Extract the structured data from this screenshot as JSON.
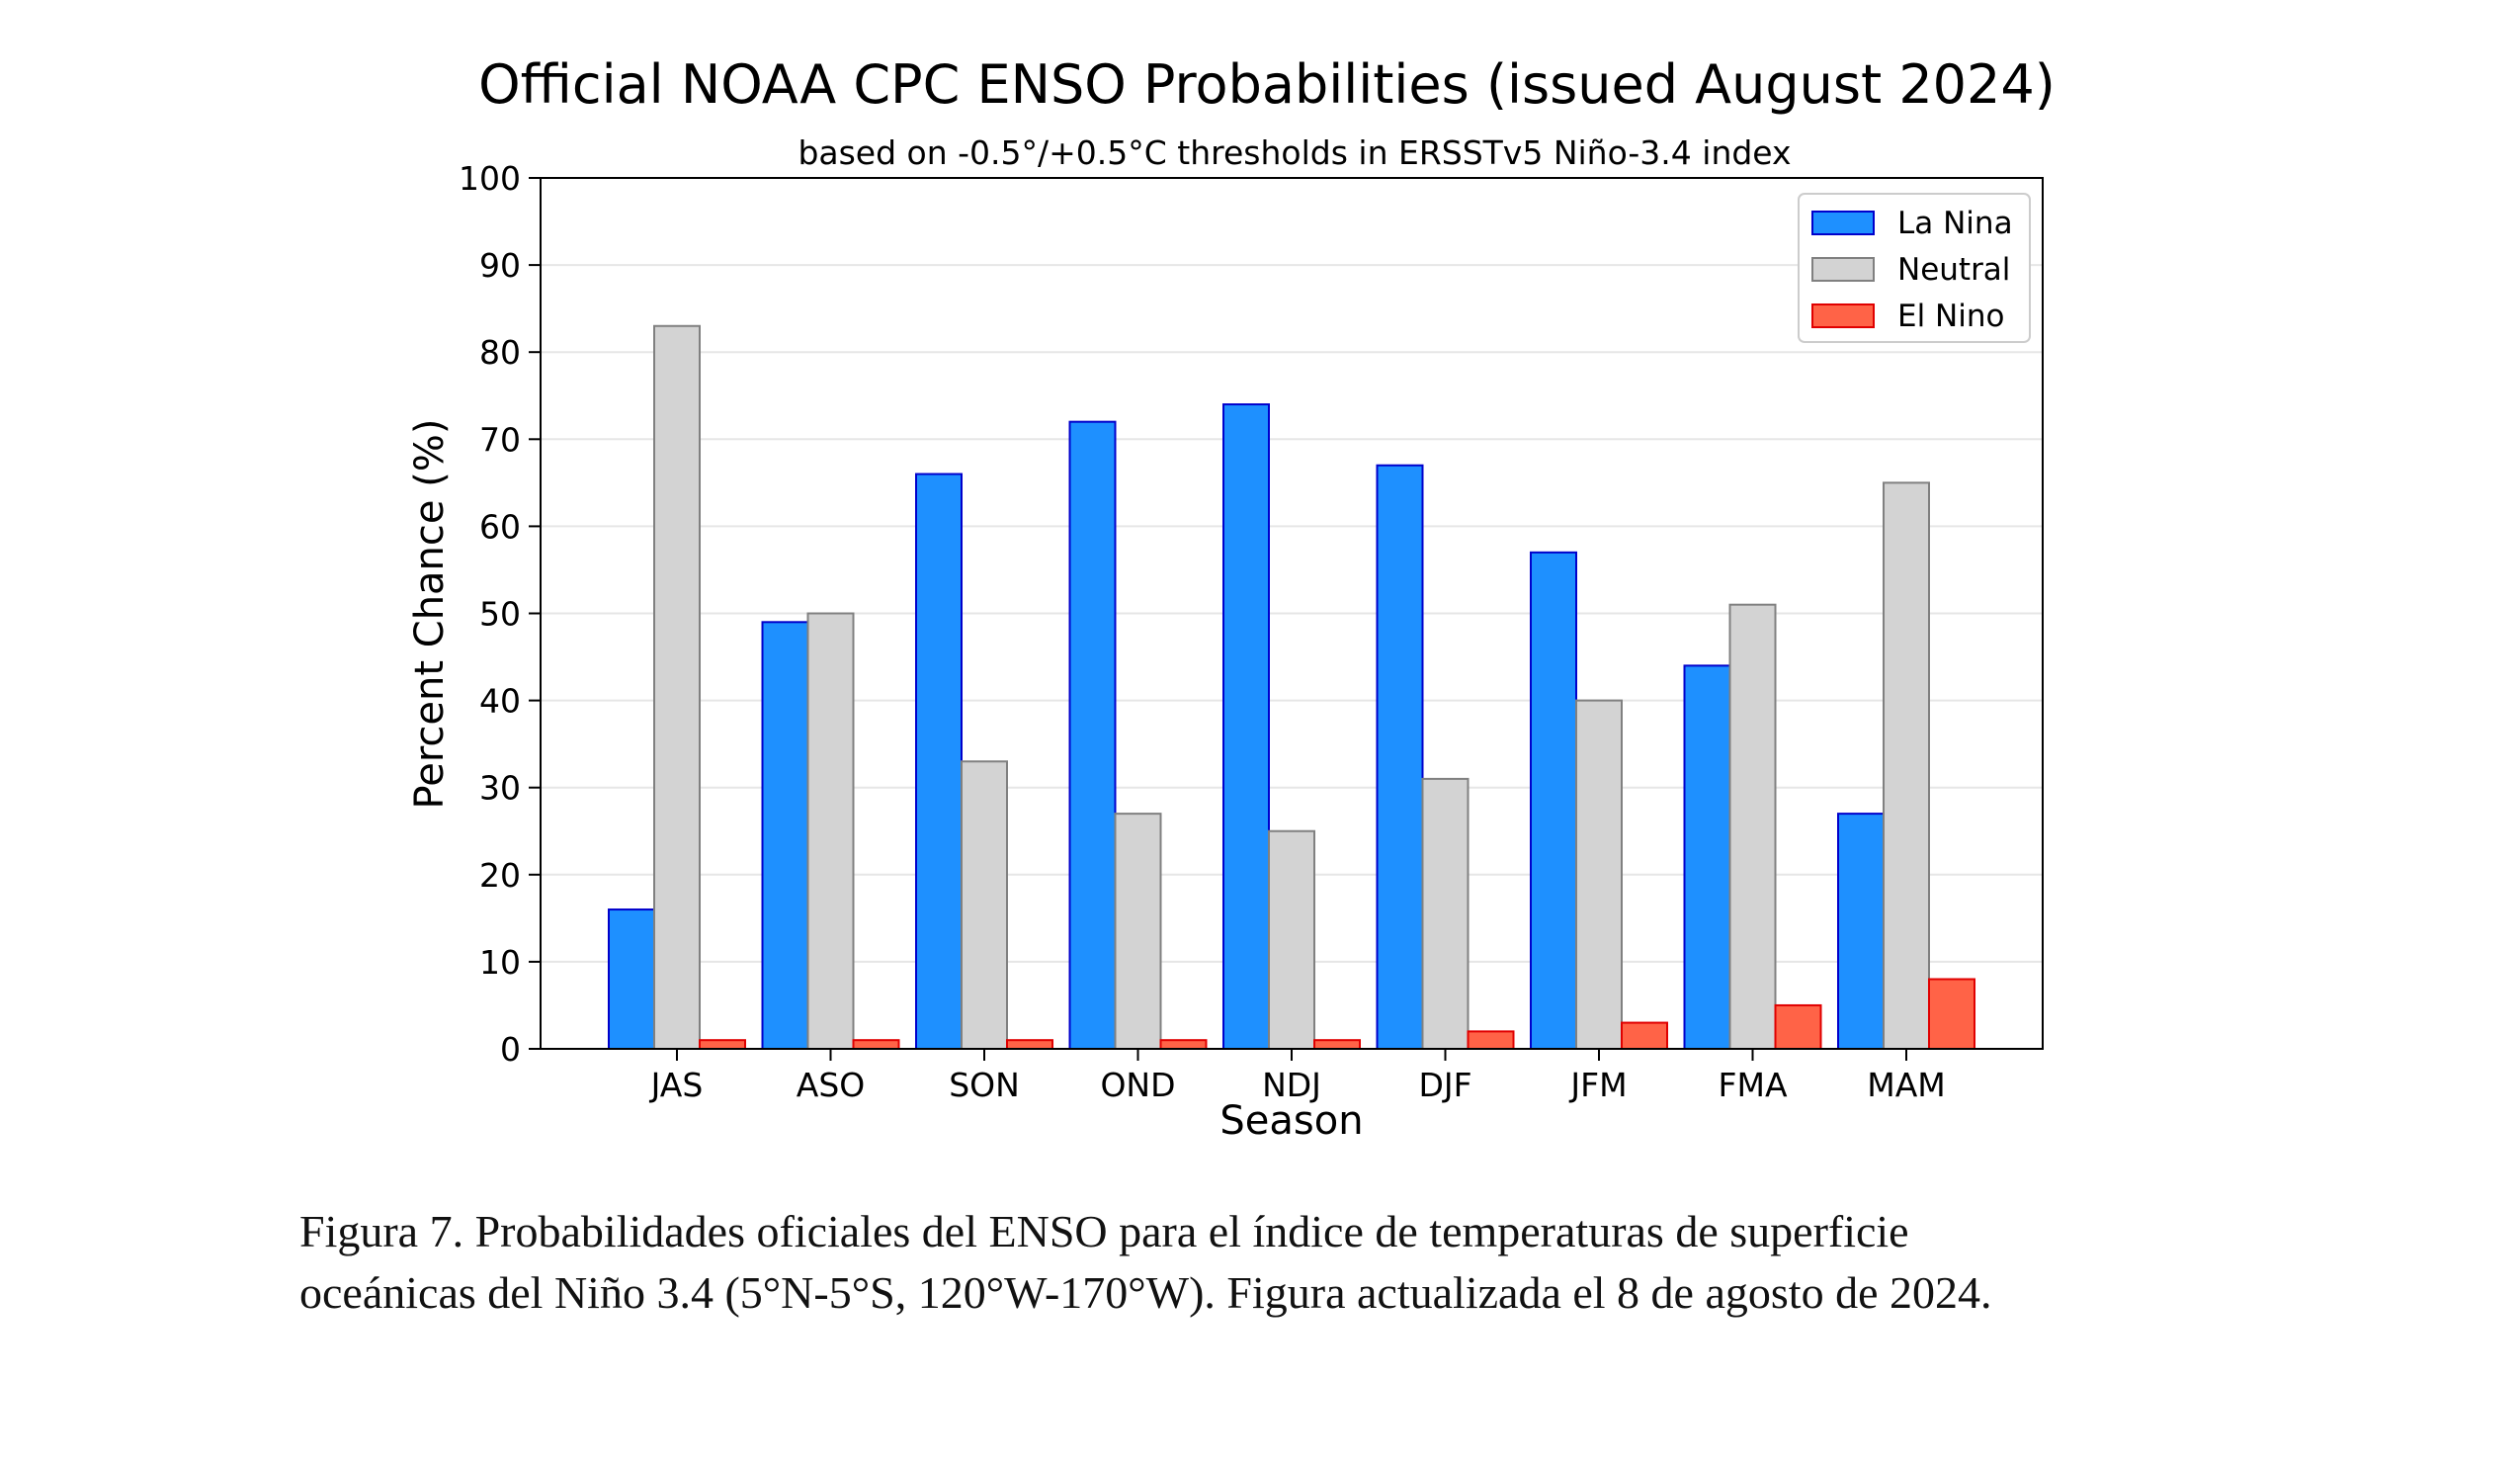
{
  "chart_data": {
    "type": "bar",
    "title": "Official NOAA CPC ENSO Probabilities (issued August 2024)",
    "subtitle": "based on -0.5°/+0.5°C thresholds in ERSSTv5 Niño-3.4 index",
    "xlabel": "Season",
    "ylabel": "Percent Chance (%)",
    "ylim": [
      0,
      100
    ],
    "yticks": [
      "0",
      "10",
      "20",
      "30",
      "40",
      "50",
      "60",
      "70",
      "80",
      "90",
      "100"
    ],
    "grid": true,
    "legend_position": "top-right",
    "categories": [
      "JAS",
      "ASO",
      "SON",
      "OND",
      "NDJ",
      "DJF",
      "JFM",
      "FMA",
      "MAM"
    ],
    "series": [
      {
        "name": "La Nina",
        "color": "#1e90ff",
        "edge": "#0000cc",
        "values": [
          16,
          49,
          66,
          72,
          74,
          67,
          57,
          44,
          27
        ]
      },
      {
        "name": "Neutral",
        "color": "#d3d3d3",
        "edge": "#808080",
        "values": [
          83,
          50,
          33,
          27,
          25,
          31,
          40,
          51,
          65
        ]
      },
      {
        "name": "El Nino",
        "color": "#ff6347",
        "edge": "#e00000",
        "values": [
          1,
          1,
          1,
          1,
          1,
          2,
          3,
          5,
          8
        ]
      }
    ]
  },
  "caption": {
    "line1": "Figura 7. Probabilidades oficiales del ENSO para el índice de temperaturas de superficie",
    "line2": "oceánicas del Niño 3.4 (5°N-5°S, 120°W-170°W). Figura actualizada el 8 de agosto de 2024."
  }
}
